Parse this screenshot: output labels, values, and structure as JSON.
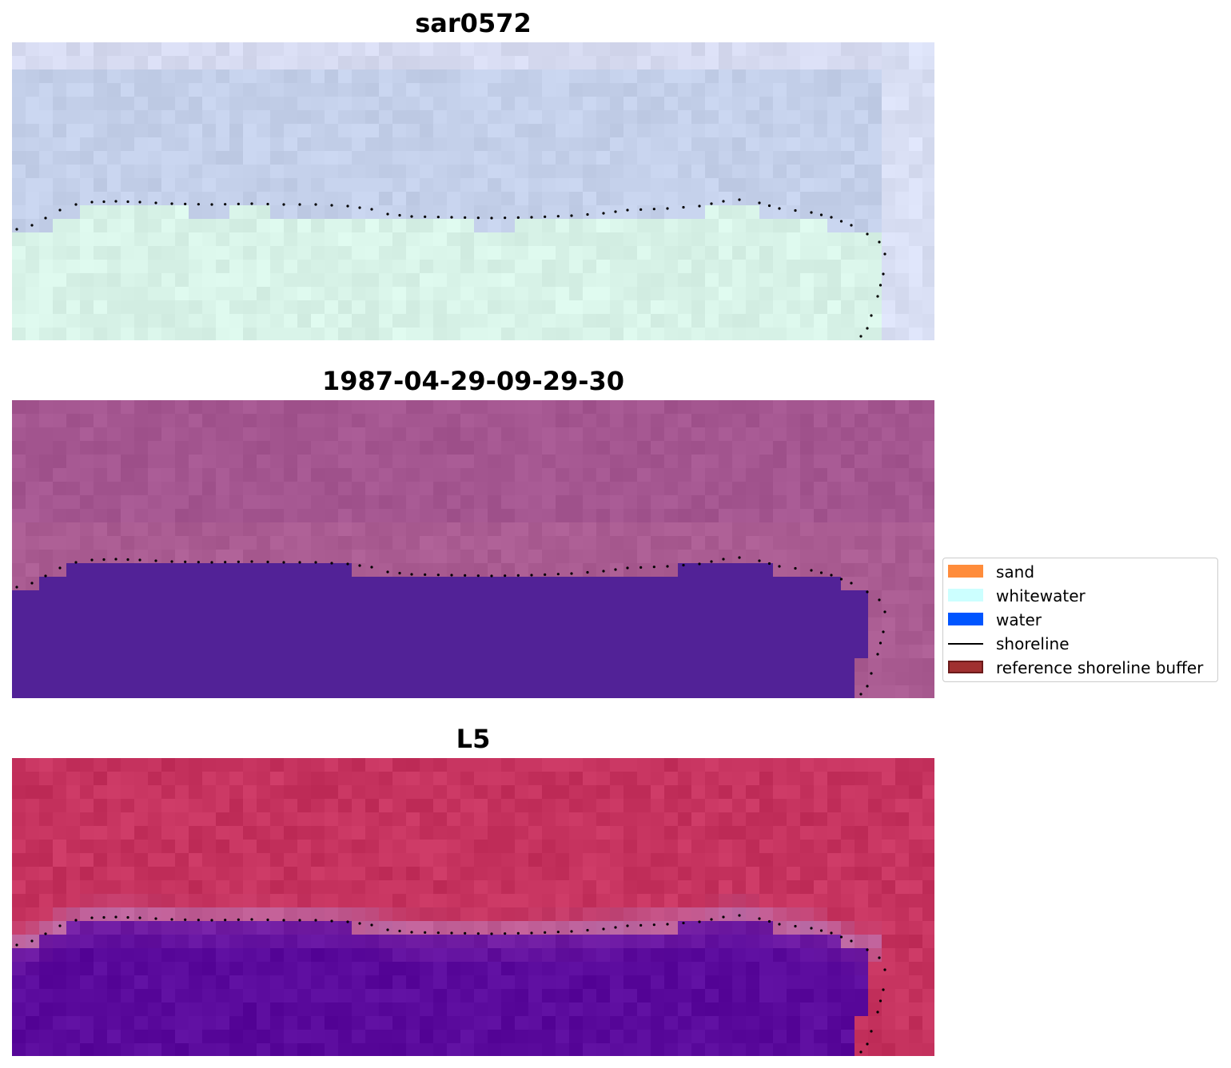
{
  "panels": [
    {
      "title": "sar0572",
      "style": "sar"
    },
    {
      "title": "1987-04-29-09-29-30",
      "style": "classified"
    },
    {
      "title": "L5",
      "style": "mndwi"
    }
  ],
  "legend": {
    "items": [
      {
        "label": "sand",
        "kind": "patch",
        "color": "#ff8c3b"
      },
      {
        "label": "whitewater",
        "kind": "patch",
        "color": "#ccffff"
      },
      {
        "label": "water",
        "kind": "patch",
        "color": "#0055ff"
      },
      {
        "label": "shoreline",
        "kind": "line",
        "color": "#000000"
      },
      {
        "label": "reference shoreline buffer",
        "kind": "patch",
        "color": "#a03030",
        "edge": "#6b1a1a"
      }
    ]
  },
  "colors": {
    "sar_top": "#c4d0e6",
    "sar_bottom": "#d8f3e4",
    "classified_land": "#a45690",
    "classified_water": "#522297",
    "mndwi_land": "#c6335f",
    "mndwi_water": "#5a0a9c",
    "shoreline_dots": "#000000"
  }
}
